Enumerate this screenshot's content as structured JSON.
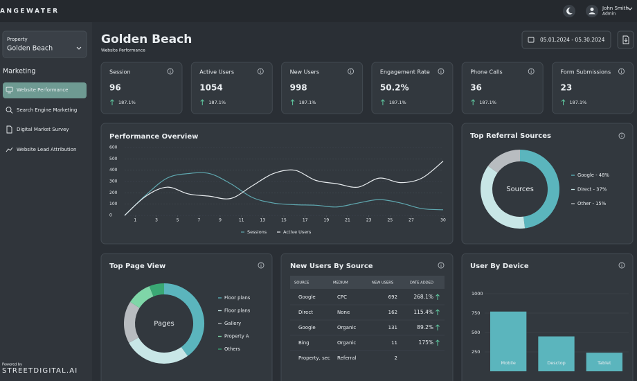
{
  "header": {
    "brand": "ANGEWATER",
    "user_name": "John Smith",
    "user_role": "Admin"
  },
  "sidebar": {
    "property_label": "Property",
    "property": "Golden Beach",
    "section": "Marketing",
    "nav": [
      "Website Performance",
      "Search Engine Marketing",
      "Digital Market Survey",
      "Website Lead Attribution"
    ],
    "powered_by": "Powered by",
    "powered_brand": "STREETDIGITAL.AI"
  },
  "page": {
    "title": "Golden Beach",
    "subtitle": "Website Performance",
    "date_range": "05.01.2024 - 05.30.2024"
  },
  "kpis": [
    {
      "label": "Session",
      "value": "96",
      "change": "187.1%"
    },
    {
      "label": "Active Users",
      "value": "1054",
      "change": "187.1%"
    },
    {
      "label": "New Users",
      "value": "998",
      "change": "187.1%"
    },
    {
      "label": "Engagement Rate",
      "value": "50.2%",
      "change": "187.1%"
    },
    {
      "label": "Phone Calls",
      "value": "36",
      "change": "187.1%"
    },
    {
      "label": "Form Submissions",
      "value": "23",
      "change": "187.1%"
    }
  ],
  "performance": {
    "type": "line",
    "title": "Performance Overview",
    "x": [
      0,
      2,
      4,
      6,
      8,
      10,
      12,
      14,
      16,
      18,
      20,
      22,
      24,
      26,
      28,
      30
    ],
    "xlim": [
      0,
      30
    ],
    "xticks": [
      1,
      3,
      5,
      7,
      9,
      11,
      13,
      15,
      17,
      19,
      21,
      23,
      25,
      27,
      30
    ],
    "ylim": [
      0,
      600
    ],
    "yticks": [
      0,
      100,
      200,
      300,
      400,
      500,
      600
    ],
    "grid": true,
    "series": [
      {
        "name": "Sessions",
        "color": "#5fa8b0",
        "values": [
          0,
          180,
          330,
          370,
          370,
          280,
          160,
          110,
          95,
          90,
          75,
          110,
          140,
          110,
          60,
          50
        ]
      },
      {
        "name": "Active Users",
        "color": "#e8ecef",
        "values": [
          0,
          170,
          250,
          190,
          170,
          150,
          260,
          370,
          400,
          310,
          280,
          250,
          330,
          290,
          330,
          480
        ]
      }
    ]
  },
  "referral": {
    "type": "donut",
    "title": "Top Referral Sources",
    "center": "Sources",
    "labels": [
      "Google - 48%",
      "Direct - 37%",
      "Other - 15%"
    ],
    "values": [
      48,
      37,
      15
    ],
    "colors": [
      "#5bb5bd",
      "#c8e6e6",
      "#b8bcc0"
    ]
  },
  "pages": {
    "type": "donut",
    "title": "Top Page View",
    "center": "Pages",
    "labels": [
      "Floor plans",
      "Floor plans",
      "Gallery",
      "Property A",
      "Others"
    ],
    "values": [
      40,
      27,
      17,
      10,
      6
    ],
    "colors": [
      "#5bb5bd",
      "#c8e6e6",
      "#b8bcc0",
      "#7fd6a8",
      "#3aa874"
    ]
  },
  "table": {
    "title": "New Users By Source",
    "columns": [
      "SOURCE",
      "MEDIUM",
      "NEW USERS",
      "DATE ADDED"
    ],
    "rows": [
      [
        "Google",
        "CPC",
        "692",
        "268.1%"
      ],
      [
        "Direct",
        "None",
        "162",
        "115.4%"
      ],
      [
        "Google",
        "Organic",
        "131",
        "89.2%"
      ],
      [
        "Bing",
        "Organic",
        "11",
        "175%"
      ],
      [
        "Property, sec",
        "Referral",
        "2"
      ]
    ]
  },
  "devices": {
    "type": "bar",
    "title": "User By Device",
    "categories": [
      "Mobile",
      "Desctop",
      "Tablet"
    ],
    "values": [
      770,
      450,
      240
    ],
    "color": "#5bb5bd",
    "ylim": [
      0,
      1000
    ],
    "yticks": [
      250,
      500,
      750,
      1000
    ],
    "grid": true
  }
}
